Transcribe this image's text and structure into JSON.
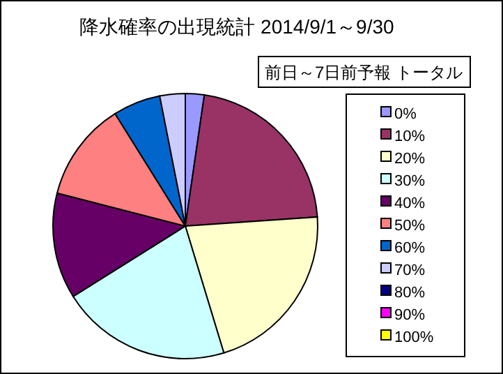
{
  "chart_data": {
    "type": "pie",
    "title": "降水確率の出現統計 2014/9/1～9/30",
    "subtitle": "前日～7日前予報 トータル",
    "legend": "right",
    "categories": [
      "0%",
      "10%",
      "20%",
      "30%",
      "40%",
      "50%",
      "60%",
      "70%",
      "80%",
      "90%",
      "100%"
    ],
    "values": [
      2.3,
      21.6,
      21.4,
      20.8,
      12.9,
      12.1,
      5.8,
      3.1,
      0,
      0,
      0
    ],
    "colors": [
      "#9999ff",
      "#993366",
      "#ffffcc",
      "#ccffff",
      "#660066",
      "#ff8080",
      "#0066cc",
      "#ccccff",
      "#000080",
      "#ff00ff",
      "#ffff00"
    ]
  }
}
